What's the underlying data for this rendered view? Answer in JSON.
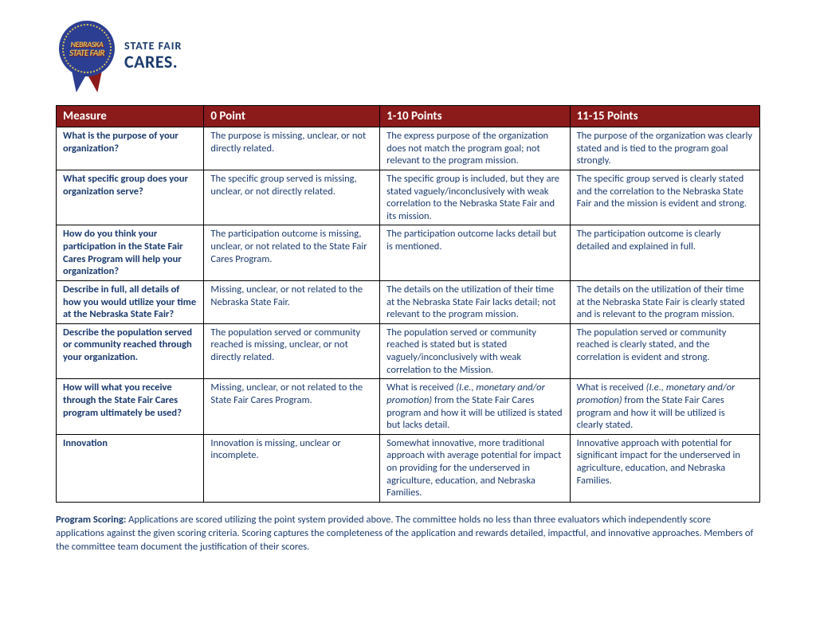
{
  "logo": {
    "line1": "NEBRASKA",
    "line2": "STATE FAIR",
    "tag1": "STATE FAIR",
    "tag2": "CARES."
  },
  "table": {
    "header_bg": "#8b1a1a",
    "header_fg": "#ffffff",
    "text_color": "#1a3a6e",
    "border_color": "#000000",
    "columns": [
      "Measure",
      "0 Point",
      "1-10 Points",
      "11-15 Points"
    ],
    "rows": [
      {
        "measure": "What is the purpose of your organization?",
        "c0": "The purpose is missing, unclear, or not directly related.",
        "c1": "The express purpose of the organization does not match the program goal; not relevant to the program mission.",
        "c2": "The purpose of the organization was clearly stated and is tied to the program goal strongly."
      },
      {
        "measure": "What specific group does your organization serve?",
        "c0": "The specific group served is missing, unclear, or not directly related.",
        "c1": "The specific group is included, but they are stated vaguely/inconclusively with weak correlation to the Nebraska State Fair and its mission.",
        "c2": "The specific group served is clearly stated and the correlation to the Nebraska State Fair and the mission is evident and strong."
      },
      {
        "measure": "How do you think your participation in the State Fair Cares Program will help your organization?",
        "c0": "The participation outcome is missing, unclear, or not related to the State Fair Cares Program.",
        "c1": "The participation outcome lacks detail but is mentioned.",
        "c2": "The participation outcome is clearly detailed and explained in full."
      },
      {
        "measure": "Describe in full, all details of how you would utilize your time at the Nebraska State Fair?",
        "c0": "Missing, unclear, or not related to the Nebraska State Fair.",
        "c1": "The details on the utilization of their time at the Nebraska State Fair lacks detail; not relevant to the program mission.",
        "c2": "The details on the utilization of their time at the Nebraska State Fair is clearly stated and is relevant to the program mission."
      },
      {
        "measure": "Describe the population served or community reached through your organization.",
        "c0": "The population served or community reached is missing, unclear, or not directly related.",
        "c1": "The population served or community reached is stated but is stated vaguely/inconclusively with weak correlation to the Mission.",
        "c2": "The population served or community reached is clearly stated, and the correlation is evident and strong."
      },
      {
        "measure": "How will what you receive through the State Fair Cares program ultimately be used?",
        "c0": "Missing, unclear, or not related to the State Fair Cares Program.",
        "c1_pre": "What is received ",
        "c1_it": "(I.e., monetary and/or promotion)",
        "c1_post": " from the State Fair Cares program and how it will be utilized is stated but lacks detail.",
        "c2_pre": "What is received ",
        "c2_it": "(I.e., monetary and/or promotion)",
        "c2_post": " from the State Fair Cares program and how it will be utilized is clearly stated."
      },
      {
        "measure": "Innovation",
        "c0": "Innovation is missing, unclear or incomplete.",
        "c1": "Somewhat innovative, more traditional approach with average potential for impact on providing for the underserved in agriculture, education, and Nebraska Families.",
        "c2": "Innovative approach with potential for significant impact for the underserved in agriculture, education, and Nebraska Families."
      }
    ]
  },
  "footer": {
    "label": "Program Scoring: ",
    "text": "Applications are scored utilizing the point system provided above.  The committee holds no less than three evaluators which independently score applications against the given scoring criteria. Scoring captures the completeness of the application and rewards detailed, impactful, and innovative approaches. Members of the committee team document the justification of their scores."
  }
}
